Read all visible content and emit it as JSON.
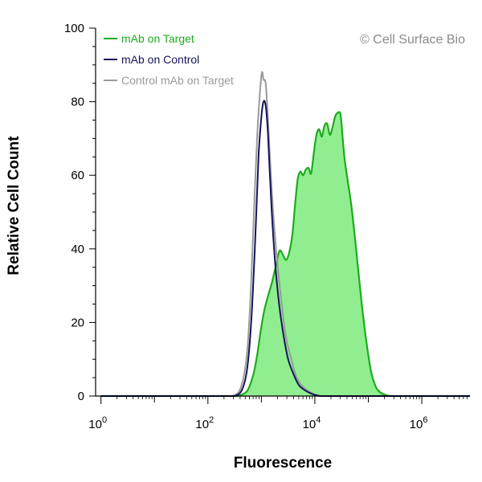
{
  "chart_data": {
    "type": "area",
    "title": "",
    "xlabel": "Fluorescence",
    "ylabel": "Relative Cell Count",
    "x_scale": "log10",
    "xlim_log10": [
      -0.1,
      6.9
    ],
    "ylim": [
      0,
      100
    ],
    "y_ticks": [
      0,
      20,
      40,
      60,
      80,
      100
    ],
    "x_ticks": [
      {
        "exp": 0,
        "base": "10",
        "sup": "0"
      },
      {
        "exp": 2,
        "base": "10",
        "sup": "2"
      },
      {
        "exp": 4,
        "base": "10",
        "sup": "4"
      },
      {
        "exp": 6,
        "base": "10",
        "sup": "6"
      }
    ],
    "watermark": "© Cell Surface Bio",
    "legend_position": "top-left",
    "series": [
      {
        "name": "mAb on Target",
        "color": "#1faa1f",
        "fill": "#90ee90",
        "filled": true,
        "points_log10x": [
          [
            2.55,
            0
          ],
          [
            2.62,
            0.3
          ],
          [
            2.68,
            0.7
          ],
          [
            2.74,
            1.5
          ],
          [
            2.8,
            3.5
          ],
          [
            2.86,
            6.5
          ],
          [
            2.92,
            11
          ],
          [
            2.98,
            17
          ],
          [
            3.05,
            23
          ],
          [
            3.12,
            27
          ],
          [
            3.2,
            31
          ],
          [
            3.28,
            36
          ],
          [
            3.34,
            39.5
          ],
          [
            3.4,
            38.5
          ],
          [
            3.46,
            37
          ],
          [
            3.52,
            39
          ],
          [
            3.58,
            44
          ],
          [
            3.63,
            52
          ],
          [
            3.68,
            59
          ],
          [
            3.73,
            61
          ],
          [
            3.78,
            60
          ],
          [
            3.83,
            61.5
          ],
          [
            3.88,
            62
          ],
          [
            3.93,
            60.5
          ],
          [
            3.98,
            66
          ],
          [
            4.03,
            71
          ],
          [
            4.08,
            72.5
          ],
          [
            4.13,
            70.5
          ],
          [
            4.18,
            73.5
          ],
          [
            4.23,
            74
          ],
          [
            4.28,
            71
          ],
          [
            4.33,
            73
          ],
          [
            4.38,
            76
          ],
          [
            4.43,
            77
          ],
          [
            4.48,
            76.5
          ],
          [
            4.52,
            70
          ],
          [
            4.56,
            64
          ],
          [
            4.62,
            58
          ],
          [
            4.68,
            52
          ],
          [
            4.75,
            43
          ],
          [
            4.82,
            33
          ],
          [
            4.9,
            22
          ],
          [
            4.98,
            13
          ],
          [
            5.06,
            6
          ],
          [
            5.14,
            2.5
          ],
          [
            5.22,
            1
          ],
          [
            5.32,
            0.3
          ],
          [
            5.42,
            0
          ]
        ]
      },
      {
        "name": "mAb on Control",
        "color": "#14145e",
        "filled": false,
        "points_log10x": [
          [
            2.5,
            0
          ],
          [
            2.6,
            0.8
          ],
          [
            2.66,
            2.5
          ],
          [
            2.72,
            6
          ],
          [
            2.78,
            14
          ],
          [
            2.84,
            28
          ],
          [
            2.9,
            48
          ],
          [
            2.95,
            66
          ],
          [
            3.0,
            76
          ],
          [
            3.04,
            80
          ],
          [
            3.08,
            79
          ],
          [
            3.12,
            72
          ],
          [
            3.16,
            60
          ],
          [
            3.21,
            46
          ],
          [
            3.27,
            34
          ],
          [
            3.34,
            24
          ],
          [
            3.42,
            16
          ],
          [
            3.5,
            10
          ],
          [
            3.6,
            6
          ],
          [
            3.7,
            3
          ],
          [
            3.82,
            1.5
          ],
          [
            3.96,
            0.5
          ],
          [
            4.1,
            0
          ]
        ]
      },
      {
        "name": "Control mAb on Target",
        "color": "#9a9a9a",
        "filled": false,
        "points_log10x": [
          [
            2.45,
            0
          ],
          [
            2.56,
            0.8
          ],
          [
            2.62,
            2.5
          ],
          [
            2.68,
            6
          ],
          [
            2.74,
            13
          ],
          [
            2.8,
            28
          ],
          [
            2.86,
            50
          ],
          [
            2.92,
            70
          ],
          [
            2.97,
            82
          ],
          [
            3.01,
            88
          ],
          [
            3.04,
            86
          ],
          [
            3.08,
            85
          ],
          [
            3.12,
            76
          ],
          [
            3.17,
            62
          ],
          [
            3.23,
            48
          ],
          [
            3.3,
            36
          ],
          [
            3.38,
            25
          ],
          [
            3.46,
            16
          ],
          [
            3.56,
            10
          ],
          [
            3.66,
            5
          ],
          [
            3.78,
            2.5
          ],
          [
            3.92,
            1
          ],
          [
            4.06,
            0
          ]
        ]
      }
    ]
  }
}
